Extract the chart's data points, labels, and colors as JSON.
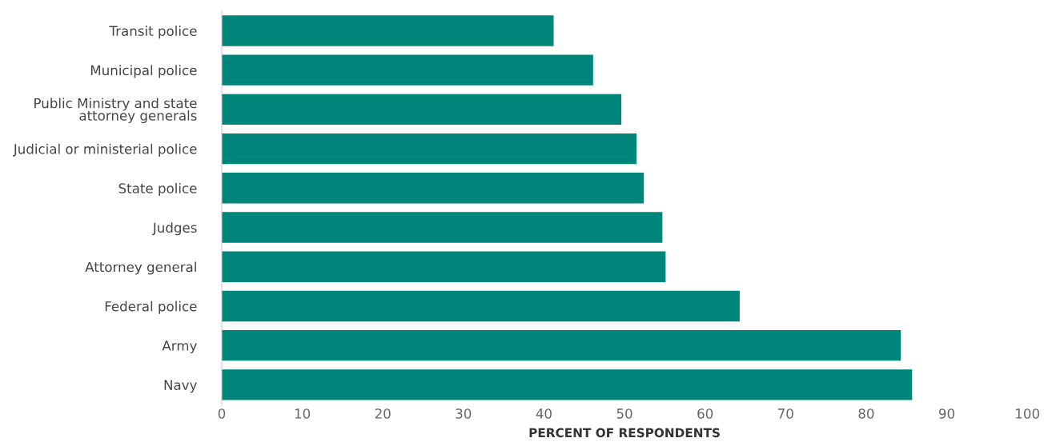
{
  "chart_data": {
    "type": "bar",
    "orientation": "horizontal",
    "xlabel": "PERCENT OF RESPONDENTS",
    "categories": [
      "Transit police",
      "Municipal police",
      "Public Ministry and state\nattorney generals",
      "Judicial or ministerial police",
      "State police",
      "Judges",
      "Attorney general",
      "Federal police",
      "Army",
      "Navy"
    ],
    "values": [
      41.2,
      46.1,
      49.6,
      51.5,
      52.4,
      54.7,
      55.1,
      64.3,
      84.3,
      85.7
    ],
    "color": "#00857a",
    "xlim": [
      0,
      100
    ],
    "xticks": [
      0,
      10,
      20,
      30,
      40,
      50,
      60,
      70,
      80,
      90,
      100
    ],
    "grid": false
  }
}
